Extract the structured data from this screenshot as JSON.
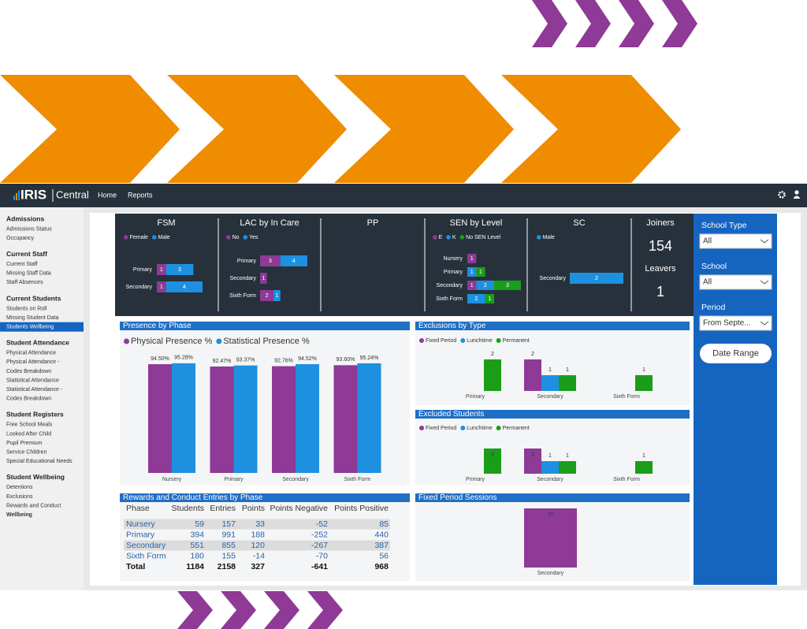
{
  "nav": {
    "logo": "IRIS",
    "product": "Central",
    "links": [
      "Home",
      "Reports"
    ]
  },
  "sidebar": [
    {
      "heading": "Admissions",
      "items": [
        "Admissions Status",
        "Occupancy"
      ]
    },
    {
      "heading": "Current Staff",
      "items": [
        "Current Staff",
        "Missing Staff Data",
        "Staff Absences"
      ]
    },
    {
      "heading": "Current Students",
      "items": [
        "Students on Roll",
        "Missing Student Data",
        "Students Wellbeing"
      ],
      "selected": 2
    },
    {
      "heading": "Student Attendance",
      "items": [
        "Physical Attendance",
        [
          "Physical Attendance -",
          "Codes Breakdown"
        ],
        "Statistical Attendance",
        [
          "Statistical Attendance -",
          "Codes Breakdown"
        ]
      ]
    },
    {
      "heading": "Student Registers",
      "items": [
        "Free School Meals",
        "Looked After Child",
        "Pupil Premium",
        "Service Children",
        "Special Educational Needs"
      ]
    },
    {
      "heading": "Student Wellbeing",
      "items": [
        "Detentions",
        "Exclusions",
        "Rewards and Conduct",
        "Wellbeing"
      ],
      "current": 3
    }
  ],
  "kpi_charts": [
    {
      "type": "hbar",
      "title": "FSM",
      "categories": [
        "Primary",
        "Secondary"
      ],
      "series": [
        {
          "name": "Female",
          "color": "#8e3a96",
          "values": [
            1,
            1
          ]
        },
        {
          "name": "Male",
          "color": "#1e90e0",
          "values": [
            3,
            4
          ]
        }
      ]
    },
    {
      "type": "hbar",
      "title": "LAC by In Care",
      "categories": [
        "Primary",
        "Secondary",
        "Sixth Form"
      ],
      "series": [
        {
          "name": "No",
          "color": "#8e3a96",
          "values": [
            3,
            1,
            2
          ]
        },
        {
          "name": "Yes",
          "color": "#1e90e0",
          "values": [
            4,
            null,
            1
          ]
        }
      ]
    },
    {
      "type": "hbar",
      "title": "PP",
      "categories": [],
      "series": []
    },
    {
      "type": "hbar",
      "title": "SEN by Level",
      "categories": [
        "Nursery",
        "Primary",
        "Secondary",
        "Sixth Form"
      ],
      "series": [
        {
          "name": "E",
          "color": "#8e3a96",
          "values": [
            1,
            null,
            1,
            null
          ]
        },
        {
          "name": "K",
          "color": "#1e90e0",
          "values": [
            null,
            1,
            2,
            2
          ]
        },
        {
          "name": "No SEN Level",
          "color": "#1a9e1a",
          "values": [
            null,
            1,
            3,
            1
          ]
        }
      ]
    },
    {
      "type": "hbar",
      "title": "SC",
      "categories": [
        "Secondary"
      ],
      "series": [
        {
          "name": "Male",
          "color": "#1e90e0",
          "values": [
            2
          ]
        }
      ]
    }
  ],
  "kpis": [
    {
      "label": "Joiners",
      "value": 154
    },
    {
      "label": "Leavers",
      "value": 1
    }
  ],
  "charts": [
    {
      "type": "bar",
      "title": "Presence by Phase",
      "categories": [
        "Nursery",
        "Primary",
        "Secondary",
        "Sixth Form"
      ],
      "series": [
        {
          "name": "Physical Presence %",
          "color": "#8e3a96",
          "values": [
            94.5,
            92.47,
            92.76,
            93.6
          ],
          "value_labels": [
            "94.50%",
            "92.47%",
            "92.76%",
            "93.60%"
          ]
        },
        {
          "name": "Statistical Presence %",
          "color": "#1e90e0",
          "values": [
            95.28,
            93.37,
            94.52,
            95.24
          ],
          "value_labels": [
            "95.28%",
            "93.37%",
            "94.52%",
            "95.24%"
          ]
        }
      ]
    },
    {
      "type": "bar",
      "title": "Exclusions by Type",
      "categories": [
        "Primary",
        "Secondary",
        "Sixth Form"
      ],
      "series": [
        {
          "name": "Fixed Period",
          "color": "#8e3a96",
          "values": [
            null,
            2,
            null
          ]
        },
        {
          "name": "Lunchtime",
          "color": "#1e90e0",
          "values": [
            null,
            1,
            null
          ]
        },
        {
          "name": "Permanent",
          "color": "#1a9e1a",
          "values": [
            2,
            1,
            1
          ]
        }
      ]
    },
    {
      "type": "bar",
      "title": "Excluded Students",
      "categories": [
        "Primary",
        "Secondary",
        "Sixth Form"
      ],
      "series": [
        {
          "name": "Fixed Period",
          "color": "#8e3a96",
          "values": [
            null,
            2,
            null
          ]
        },
        {
          "name": "Lunchtime",
          "color": "#1e90e0",
          "values": [
            null,
            1,
            null
          ]
        },
        {
          "name": "Permanent",
          "color": "#1a9e1a",
          "values": [
            2,
            1,
            1
          ]
        }
      ]
    },
    {
      "type": "bar",
      "title": "Fixed Period Sessions",
      "categories": [
        "Secondary"
      ],
      "series": [
        {
          "color": "#8e3a96",
          "values": [
            10
          ]
        }
      ]
    }
  ],
  "table": {
    "title": "Rewards and Conduct Entries by Phase",
    "columns": [
      "Phase",
      "Students",
      "Entries",
      "Points",
      "Points Negative",
      "Points Positive"
    ],
    "rows": [
      [
        "Nursery",
        59,
        157,
        33,
        -52,
        85
      ],
      [
        "Primary",
        394,
        991,
        188,
        -252,
        440
      ],
      [
        "Secondary",
        551,
        855,
        120,
        -267,
        387
      ],
      [
        "Sixth Form",
        180,
        155,
        -14,
        -70,
        56
      ]
    ],
    "total": [
      "Total",
      1184,
      2158,
      327,
      -641,
      968
    ]
  },
  "filters": [
    {
      "label": "School Type",
      "value": "All"
    },
    {
      "label": "School",
      "value": "All"
    },
    {
      "label": "Period",
      "value": "From Septe..."
    }
  ],
  "button": "Date Range"
}
